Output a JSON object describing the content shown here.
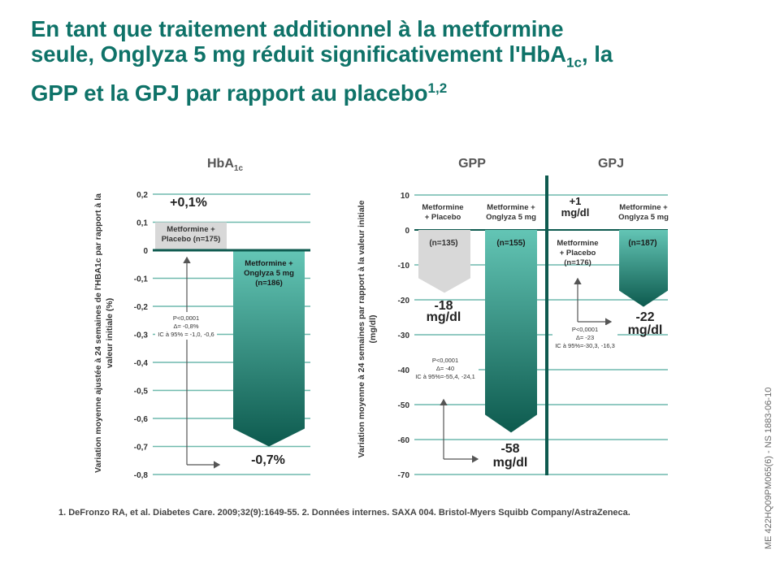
{
  "title": {
    "line1": "En tant que traitement additionnel à la metformine",
    "line2a": "seule, Onglyza 5 mg réduit significativement l'HbA",
    "line2sub": "1c",
    "line2b": ", la",
    "line3": "GPP et la GPJ par rapport au placebo",
    "line3sup": "1,2"
  },
  "footnote": "1. DeFronzo RA, et al. Diabetes Care. 2009;32(9):1649-55. 2. Données internes. SAXA 004. Bristol-Myers Squibb Company/AstraZeneca.",
  "side_reference": "ME 422HQ09PM065(6)  -  NS  1883-06-10",
  "colors": {
    "title": "#0e7268",
    "teal_light": "#63c5b5",
    "teal_dark": "#0d5a4e",
    "placebo_grey": "#d8d8d8",
    "grid": "#6fb9ad",
    "divider": "#0e5a4f"
  },
  "chart_data": [
    {
      "type": "bar",
      "title": "HbA",
      "title_sub": "1c",
      "ylabel_line1": "Variation moyenne ajustée à 24 semaines de l'HBA1c par rapport à la",
      "ylabel_line2": "valeur initiale (%)",
      "ylim": [
        -0.8,
        0.2
      ],
      "yticks": [
        "0,2",
        "0,1",
        "0",
        "-0,1",
        "-0,2",
        "-0,3",
        "-0,4",
        "-0,5",
        "-0,6",
        "-0,7",
        "-0,8"
      ],
      "grid": true,
      "categories": [
        "Metformine + Placebo (n=175)",
        "Metformine + Onglyza 5 mg (n=186)"
      ],
      "cat_labels": [
        [
          "Metformine +",
          "Placebo (n=175)"
        ],
        [
          "Metformine +",
          "Onglyza 5 mg",
          "(n=186)"
        ]
      ],
      "values": [
        0.1,
        -0.7
      ],
      "value_labels": [
        "+0,1%",
        "-0,7%"
      ],
      "stats": [
        "P<0,0001",
        "Δ= -0,8%",
        "IC à 95% = -1,0,  -0,6"
      ]
    },
    {
      "type": "bar",
      "titles": [
        "GPP",
        "GPJ"
      ],
      "ylabel_line1": "Variation moyenne à 24 semaines par rapport à la valeur initiale",
      "ylabel_line2": "(mg/dl)",
      "ylim": [
        -70,
        10
      ],
      "yticks": [
        "10",
        "0",
        "-10",
        "-20",
        "-30",
        "-40",
        "-50",
        "-60",
        "-70"
      ],
      "grid": true,
      "panels": [
        {
          "name": "GPP",
          "bars": [
            {
              "label": [
                "Metformine",
                "+ Placebo"
              ],
              "n": "(n=135)",
              "value": -18,
              "value_label": [
                "-18",
                "mg/dl"
              ]
            },
            {
              "label": [
                "Metformine +",
                "Onglyza 5 mg"
              ],
              "n": "(n=155)",
              "value": -58,
              "value_label": [
                "-58",
                "mg/dl"
              ]
            }
          ],
          "stats": [
            "P<0,0001",
            "Δ= -40",
            "IC à 95%=-55,4,   -24,1"
          ]
        },
        {
          "name": "GPJ",
          "bars": [
            {
              "label": [
                "Metformine",
                "+ Placebo",
                "(n=176)"
              ],
              "n": "",
              "value": 1,
              "value_label": [
                "+1",
                "mg/dl"
              ]
            },
            {
              "label": [
                "Metformine +",
                "Onglyza 5 mg"
              ],
              "n": "(n=187)",
              "value": -22,
              "value_label": [
                "-22",
                "mg/dl"
              ]
            }
          ],
          "stats": [
            "P<0,0001",
            "Δ= -23",
            "IC à 95%=-30,3,   -16,3"
          ]
        }
      ]
    }
  ]
}
